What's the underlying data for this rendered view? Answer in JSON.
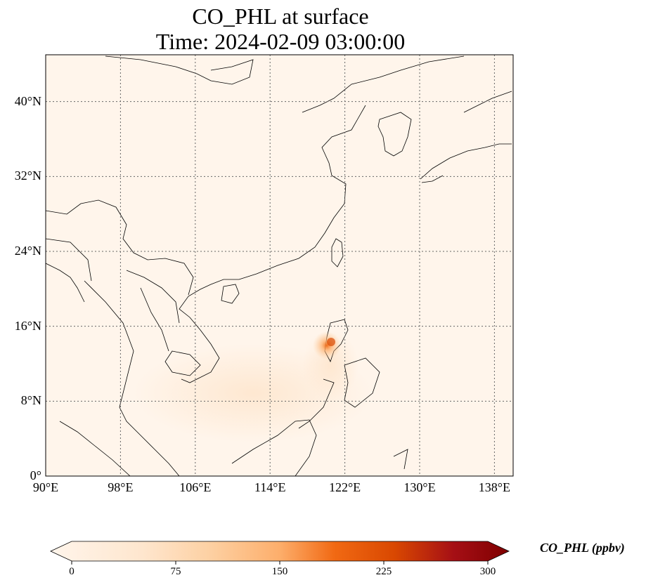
{
  "title": {
    "line1": "CO_PHL at surface",
    "line2": "Time: 2024-02-09 03:00:00"
  },
  "map": {
    "lon_range": [
      90,
      140
    ],
    "lat_range": [
      0,
      45
    ],
    "gridlines": true,
    "x_ticks": [
      "90°E",
      "98°E",
      "106°E",
      "114°E",
      "122°E",
      "130°E",
      "138°E"
    ],
    "y_ticks": [
      "0°",
      "8°N",
      "16°N",
      "24°N",
      "32°N",
      "40°N"
    ],
    "background_color": "#fff5eb",
    "hotspot": {
      "lon": 120.7,
      "lat": 14.5,
      "value_ppbv": 180
    }
  },
  "colorbar": {
    "label": "CO_PHL (ppbv)",
    "ticks": [
      "0",
      "75",
      "150",
      "225",
      "300"
    ],
    "range": [
      0,
      300
    ],
    "colormap": [
      "#fff5eb",
      "#fdd0a2",
      "#fdae6b",
      "#f16913",
      "#d94801",
      "#a50f15",
      "#7f0000"
    ]
  }
}
